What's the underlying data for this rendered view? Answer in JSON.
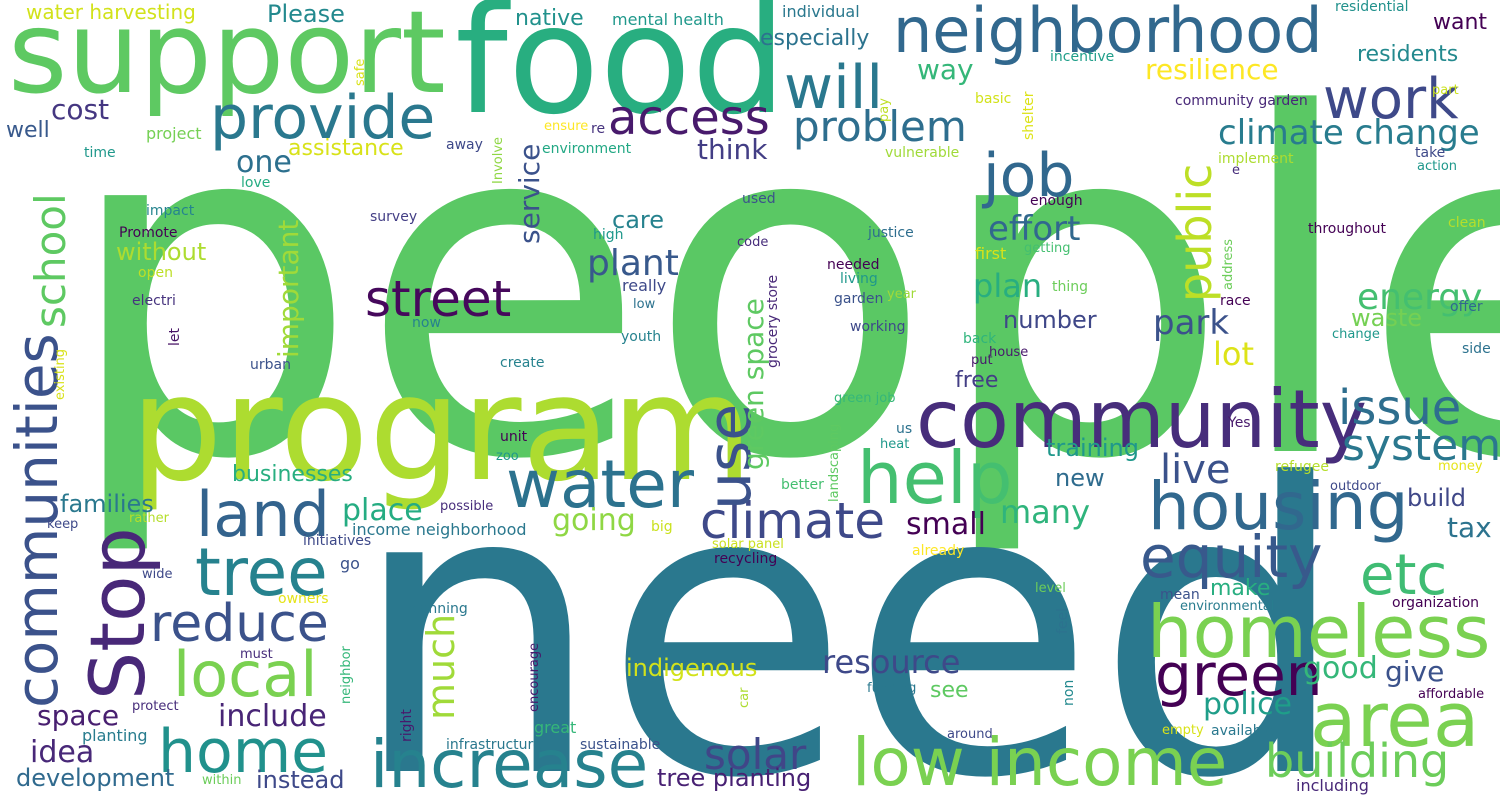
{
  "words": [
    {
      "text": "people",
      "color": "#5ac864"
    },
    {
      "text": "need",
      "color": "#2a788e"
    },
    {
      "text": "program",
      "color": "#addc30"
    },
    {
      "text": "support",
      "color": "#5ec962"
    },
    {
      "text": "food",
      "color": "#28ae80"
    },
    {
      "text": "neighborhood",
      "color": "#31688e"
    },
    {
      "text": "community",
      "color": "#472d7b"
    },
    {
      "text": "homeless",
      "color": "#7ad151"
    },
    {
      "text": "low income",
      "color": "#7ad151"
    },
    {
      "text": "increase",
      "color": "#26828e"
    },
    {
      "text": "housing",
      "color": "#31688e"
    },
    {
      "text": "water",
      "color": "#2c728e"
    },
    {
      "text": "area",
      "color": "#7ad151"
    },
    {
      "text": "Stop",
      "color": "#482878"
    },
    {
      "text": "communities",
      "color": "#3b528b"
    },
    {
      "text": "help",
      "color": "#44bf70"
    },
    {
      "text": "tree",
      "color": "#26828e"
    },
    {
      "text": "land",
      "color": "#33638d"
    },
    {
      "text": "home",
      "color": "#21918c"
    },
    {
      "text": "local",
      "color": "#7ad151"
    },
    {
      "text": "green",
      "color": "#440154"
    },
    {
      "text": "climate",
      "color": "#3e4989"
    },
    {
      "text": "use",
      "color": "#3b528b"
    },
    {
      "text": "equity",
      "color": "#38598c"
    },
    {
      "text": "etc",
      "color": "#3fbc73"
    },
    {
      "text": "street",
      "color": "#46085c"
    },
    {
      "text": "provide",
      "color": "#2a788e"
    },
    {
      "text": "work",
      "color": "#3e4989"
    },
    {
      "text": "job",
      "color": "#31688e"
    },
    {
      "text": "will",
      "color": "#2a788e"
    },
    {
      "text": "public",
      "color": "#bddf26"
    },
    {
      "text": "access",
      "color": "#481a6c"
    },
    {
      "text": "reduce",
      "color": "#3b528b"
    },
    {
      "text": "building",
      "color": "#6ccd5a"
    },
    {
      "text": "solar",
      "color": "#404688"
    },
    {
      "text": "issue",
      "color": "#2e6e8e"
    },
    {
      "text": "system",
      "color": "#2a778e"
    },
    {
      "text": "school",
      "color": "#5ec962"
    },
    {
      "text": "problem",
      "color": "#2e6e8e"
    },
    {
      "text": "climate change",
      "color": "#287c8e"
    },
    {
      "text": "much",
      "color": "#a0da39"
    },
    {
      "text": "resource",
      "color": "#3e4989"
    },
    {
      "text": "plant",
      "color": "#38598c"
    },
    {
      "text": "live",
      "color": "#3b528b"
    },
    {
      "text": "energy",
      "color": "#44bf70"
    },
    {
      "text": "park",
      "color": "#3b528b"
    },
    {
      "text": "green space",
      "color": "#5ec962"
    },
    {
      "text": "effort",
      "color": "#31688e"
    },
    {
      "text": "resilience",
      "color": "#fde725"
    },
    {
      "text": "service",
      "color": "#3b528b"
    },
    {
      "text": "important",
      "color": "#a0da39"
    },
    {
      "text": "plan",
      "color": "#28ae80"
    },
    {
      "text": "space",
      "color": "#481f70"
    },
    {
      "text": "include",
      "color": "#482576"
    },
    {
      "text": "idea",
      "color": "#482878"
    },
    {
      "text": "going",
      "color": "#8fd744"
    },
    {
      "text": "place",
      "color": "#25ac82"
    },
    {
      "text": "many",
      "color": "#2fb47c"
    },
    {
      "text": "small",
      "color": "#440154"
    },
    {
      "text": "lot",
      "color": "#dde318"
    },
    {
      "text": "police",
      "color": "#1f9e89"
    },
    {
      "text": "good",
      "color": "#35b779"
    },
    {
      "text": "give",
      "color": "#3b528b"
    },
    {
      "text": "think",
      "color": "#433e85"
    },
    {
      "text": "one",
      "color": "#2d708e"
    },
    {
      "text": "cost",
      "color": "#453781"
    },
    {
      "text": "training",
      "color": "#1f988b"
    },
    {
      "text": "waste",
      "color": "#75d054"
    },
    {
      "text": "way",
      "color": "#35b779"
    },
    {
      "text": "development",
      "color": "#306a8e"
    },
    {
      "text": "instead",
      "color": "#3e4989"
    },
    {
      "text": "tree planting",
      "color": "#482173"
    },
    {
      "text": "indigenous",
      "color": "#d2e21b"
    },
    {
      "text": "number",
      "color": "#3f4788"
    },
    {
      "text": "tax",
      "color": "#2c738e"
    },
    {
      "text": "build",
      "color": "#3f4788"
    },
    {
      "text": "new",
      "color": "#2f6c8e"
    },
    {
      "text": "free",
      "color": "#433e85"
    },
    {
      "text": "without",
      "color": "#addc30"
    },
    {
      "text": "families",
      "color": "#2a788e"
    },
    {
      "text": "businesses",
      "color": "#28ae80"
    },
    {
      "text": "care",
      "color": "#26828e"
    },
    {
      "text": "make",
      "color": "#28ae80"
    },
    {
      "text": "see",
      "color": "#5ec962"
    },
    {
      "text": "assistance",
      "color": "#d8e219"
    },
    {
      "text": "residents",
      "color": "#23898e"
    },
    {
      "text": "want",
      "color": "#440154"
    },
    {
      "text": "especially",
      "color": "#2c738e"
    },
    {
      "text": "Please",
      "color": "#23898e"
    },
    {
      "text": "water harvesting",
      "color": "#d2e21b"
    },
    {
      "text": "native",
      "color": "#21918c"
    },
    {
      "text": "mental health",
      "color": "#1f988b"
    },
    {
      "text": "individual",
      "color": "#2a788e"
    },
    {
      "text": "residential",
      "color": "#21918c"
    },
    {
      "text": "incentive",
      "color": "#1f9e89"
    },
    {
      "text": "well",
      "color": "#38598c"
    },
    {
      "text": "project",
      "color": "#75d054"
    },
    {
      "text": "time",
      "color": "#1f988b"
    },
    {
      "text": "love",
      "color": "#25ac82"
    },
    {
      "text": "impact",
      "color": "#25848e"
    },
    {
      "text": "Promote",
      "color": "#440154"
    },
    {
      "text": "open",
      "color": "#bddf26"
    },
    {
      "text": "electri",
      "color": "#46337e"
    },
    {
      "text": "let",
      "color": "#471365"
    },
    {
      "text": "now",
      "color": "#26828e"
    },
    {
      "text": "urban",
      "color": "#3b528b"
    },
    {
      "text": "existing",
      "color": "#d8e219"
    },
    {
      "text": "safe",
      "color": "#d8e219"
    },
    {
      "text": "ensure",
      "color": "#fde725"
    },
    {
      "text": "re",
      "color": "#46337e"
    },
    {
      "text": "environment",
      "color": "#22a884"
    },
    {
      "text": "away",
      "color": "#3e4989"
    },
    {
      "text": "Involve",
      "color": "#8fd744"
    },
    {
      "text": "survey",
      "color": "#433e85"
    },
    {
      "text": "high",
      "color": "#1f988b"
    },
    {
      "text": "really",
      "color": "#3e4989"
    },
    {
      "text": "low",
      "color": "#2c728e"
    },
    {
      "text": "youth",
      "color": "#26828e"
    },
    {
      "text": "create",
      "color": "#26828e"
    },
    {
      "text": "code",
      "color": "#472d7b"
    },
    {
      "text": "used",
      "color": "#3b528b"
    },
    {
      "text": "grocery store",
      "color": "#482878"
    },
    {
      "text": "pay",
      "color": "#bddf26"
    },
    {
      "text": "vulnerable",
      "color": "#a0da39"
    },
    {
      "text": "basic",
      "color": "#d2e21b"
    },
    {
      "text": "shelter",
      "color": "#dde318"
    },
    {
      "text": "enough",
      "color": "#440154"
    },
    {
      "text": "justice",
      "color": "#2e6e8e"
    },
    {
      "text": "first",
      "color": "#d8e219"
    },
    {
      "text": "getting",
      "color": "#44bf70"
    },
    {
      "text": "needed",
      "color": "#440154"
    },
    {
      "text": "living",
      "color": "#1f988b"
    },
    {
      "text": "garden",
      "color": "#3b528b"
    },
    {
      "text": "year",
      "color": "#a0da39"
    },
    {
      "text": "thing",
      "color": "#6ccd5a"
    },
    {
      "text": "working",
      "color": "#3e4989"
    },
    {
      "text": "back",
      "color": "#2fb47c"
    },
    {
      "text": "put",
      "color": "#481a6c"
    },
    {
      "text": "house",
      "color": "#481a6c"
    },
    {
      "text": "green job",
      "color": "#35b779"
    },
    {
      "text": "us",
      "color": "#2c728e"
    },
    {
      "text": "heat",
      "color": "#1f988b"
    },
    {
      "text": "landscaping",
      "color": "#5ec962"
    },
    {
      "text": "better",
      "color": "#44bf70"
    },
    {
      "text": "community garden",
      "color": "#482878"
    },
    {
      "text": "part",
      "color": "#cae11f"
    },
    {
      "text": "implement",
      "color": "#addc30"
    },
    {
      "text": "e",
      "color": "#472d7b"
    },
    {
      "text": "take",
      "color": "#3e4989"
    },
    {
      "text": "action",
      "color": "#1f988b"
    },
    {
      "text": "clean",
      "color": "#b5de2b"
    },
    {
      "text": "throughout",
      "color": "#440154"
    },
    {
      "text": "address",
      "color": "#6ccd5a"
    },
    {
      "text": "race",
      "color": "#440154"
    },
    {
      "text": "offer",
      "color": "#31688e"
    },
    {
      "text": "change",
      "color": "#1f988b"
    },
    {
      "text": "side",
      "color": "#2c728e"
    },
    {
      "text": "Yes",
      "color": "#481a6c"
    },
    {
      "text": "refugee",
      "color": "#b5de2b"
    },
    {
      "text": "money",
      "color": "#e5e419"
    },
    {
      "text": "outdoor",
      "color": "#3e4989"
    },
    {
      "text": "organization",
      "color": "#440154"
    },
    {
      "text": "mean",
      "color": "#3b528b"
    },
    {
      "text": "environmental",
      "color": "#287c8e"
    },
    {
      "text": "affordable",
      "color": "#440154"
    },
    {
      "text": "available",
      "color": "#2a788e"
    },
    {
      "text": "empty",
      "color": "#d8e219"
    },
    {
      "text": "including",
      "color": "#482878"
    },
    {
      "text": "around",
      "color": "#3e4989"
    },
    {
      "text": "funding",
      "color": "#2a788e"
    },
    {
      "text": "non",
      "color": "#23898e"
    },
    {
      "text": "feel",
      "color": "#2c728e"
    },
    {
      "text": "level",
      "color": "#6ccd5a"
    },
    {
      "text": "car",
      "color": "#addc30"
    },
    {
      "text": "sustainable",
      "color": "#3b528b"
    },
    {
      "text": "great",
      "color": "#35b779"
    },
    {
      "text": "encourage",
      "color": "#481a6c"
    },
    {
      "text": "infrastructure",
      "color": "#2a788e"
    },
    {
      "text": "planning",
      "color": "#2a788e"
    },
    {
      "text": "right",
      "color": "#481a6c"
    },
    {
      "text": "solar panel",
      "color": "#cae11f"
    },
    {
      "text": "already",
      "color": "#fde725"
    },
    {
      "text": "recycling",
      "color": "#440154"
    },
    {
      "text": "big",
      "color": "#cae11f"
    },
    {
      "text": "possible",
      "color": "#472d7b"
    },
    {
      "text": "unit",
      "color": "#440154"
    },
    {
      "text": "zoo",
      "color": "#1f988b"
    },
    {
      "text": "income neighborhood",
      "color": "#2a788e"
    },
    {
      "text": "initiatives",
      "color": "#3e4989"
    },
    {
      "text": "go",
      "color": "#3b528b"
    },
    {
      "text": "owners",
      "color": "#e5e419"
    },
    {
      "text": "must",
      "color": "#472d7b"
    },
    {
      "text": "neighbor",
      "color": "#35b779"
    },
    {
      "text": "protect",
      "color": "#472d7b"
    },
    {
      "text": "planting",
      "color": "#287c8e"
    },
    {
      "text": "within",
      "color": "#6ccd5a"
    },
    {
      "text": "keep",
      "color": "#3e4989"
    },
    {
      "text": "rather",
      "color": "#b5de2b"
    },
    {
      "text": "wide",
      "color": "#3e4989"
    }
  ]
}
